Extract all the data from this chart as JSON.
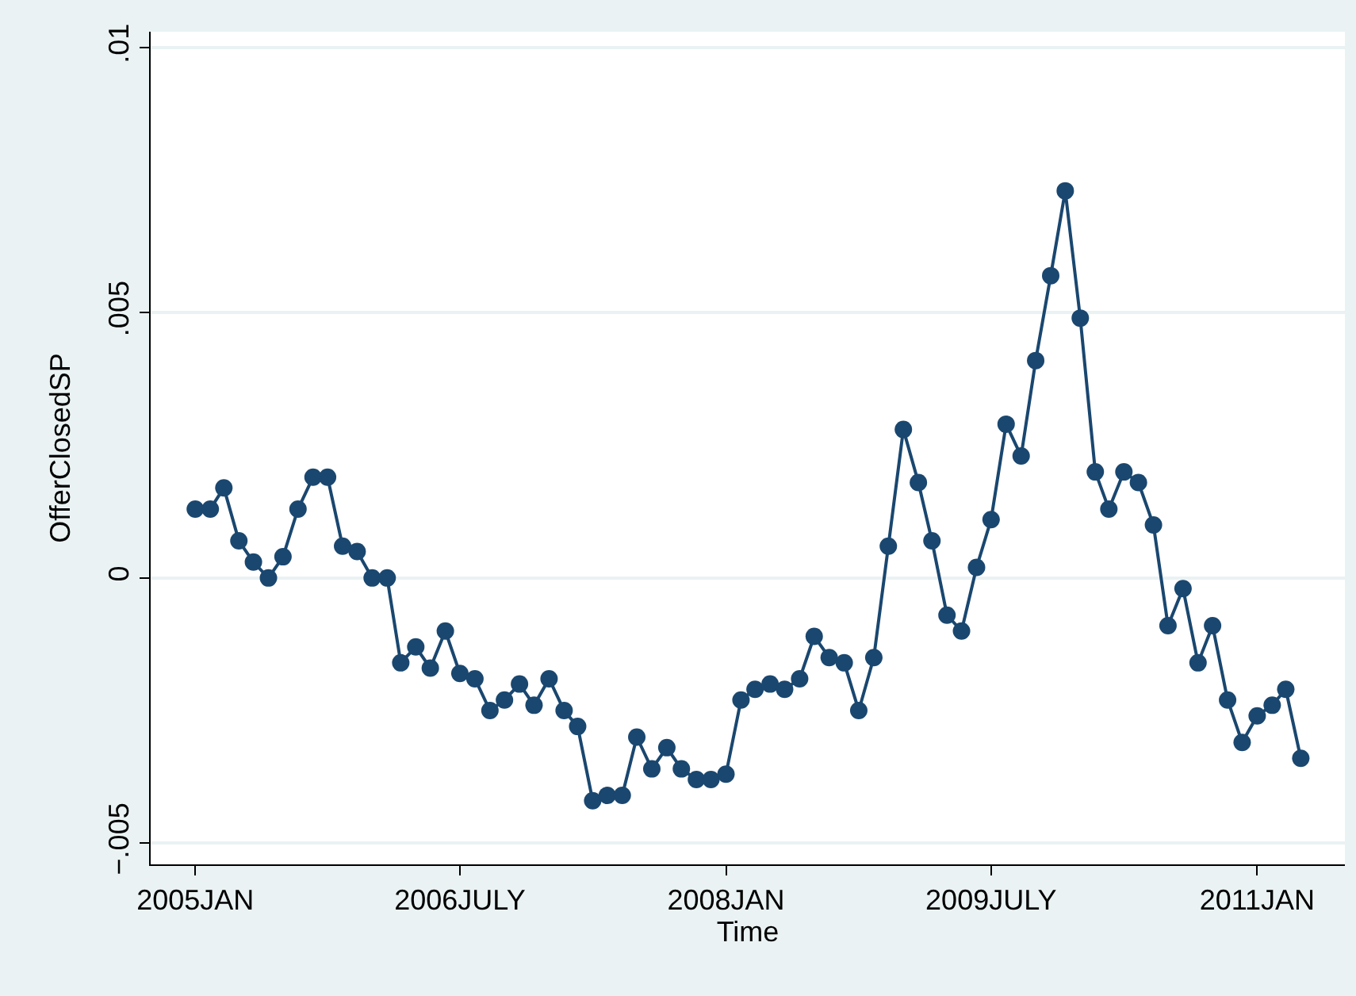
{
  "chart_data": {
    "type": "line",
    "xlabel": "Time",
    "ylabel": "OfferClosedSP",
    "x": [
      "2005-01",
      "2005-02",
      "2005-03",
      "2005-04",
      "2005-05",
      "2005-06",
      "2005-07",
      "2005-08",
      "2005-09",
      "2005-10",
      "2005-11",
      "2005-12",
      "2006-01",
      "2006-02",
      "2006-03",
      "2006-04",
      "2006-05",
      "2006-06",
      "2006-07",
      "2006-08",
      "2006-09",
      "2006-10",
      "2006-11",
      "2006-12",
      "2007-01",
      "2007-02",
      "2007-03",
      "2007-04",
      "2007-05",
      "2007-06",
      "2007-07",
      "2007-08",
      "2007-09",
      "2007-10",
      "2007-11",
      "2007-12",
      "2008-01",
      "2008-02",
      "2008-03",
      "2008-04",
      "2008-05",
      "2008-06",
      "2008-07",
      "2008-08",
      "2008-09",
      "2008-10",
      "2008-11",
      "2008-12",
      "2009-01",
      "2009-02",
      "2009-03",
      "2009-04",
      "2009-05",
      "2009-06",
      "2009-07",
      "2009-08",
      "2009-09",
      "2009-10",
      "2009-11",
      "2009-12",
      "2010-01",
      "2010-02",
      "2010-03",
      "2010-04",
      "2010-05",
      "2010-06",
      "2010-07",
      "2010-08",
      "2010-09",
      "2010-10",
      "2010-11",
      "2010-12",
      "2011-01",
      "2011-02",
      "2011-03",
      "2011-04"
    ],
    "series": [
      {
        "color": "#1a476f",
        "values": [
          0.0013,
          0.0013,
          0.0017,
          0.0007,
          0.0003,
          0.0,
          0.0004,
          0.0013,
          0.0019,
          0.0019,
          0.0006,
          0.0005,
          0.0,
          0.0,
          -0.0016,
          -0.0013,
          -0.0017,
          -0.001,
          -0.0018,
          -0.0019,
          -0.0025,
          -0.0023,
          -0.002,
          -0.0024,
          -0.0019,
          -0.0025,
          -0.0028,
          -0.0042,
          -0.0041,
          -0.0041,
          -0.003,
          -0.0036,
          -0.0032,
          -0.0036,
          -0.0038,
          -0.0038,
          -0.0037,
          -0.0023,
          -0.0021,
          -0.002,
          -0.0021,
          -0.0019,
          -0.0011,
          -0.0015,
          -0.0016,
          -0.0025,
          -0.0015,
          0.0006,
          0.0028,
          0.0018,
          0.0007,
          -0.0007,
          -0.001,
          0.0002,
          0.0011,
          0.0029,
          0.0023,
          0.0041,
          0.0057,
          0.0073,
          0.0049,
          0.002,
          0.0013,
          0.002,
          0.0018,
          0.001,
          -0.0009,
          -0.0002,
          -0.0016,
          -0.0009,
          -0.0023,
          -0.0031,
          -0.0026,
          -0.0024,
          -0.0021,
          -0.0034
        ]
      }
    ],
    "xlim": [
      "2004-10",
      "2011-07"
    ],
    "xticks": [
      {
        "value": "2005-01",
        "label": "2005JAN"
      },
      {
        "value": "2006-07",
        "label": "2006JULY"
      },
      {
        "value": "2008-01",
        "label": "2008JAN"
      },
      {
        "value": "2009-07",
        "label": "2009JULY"
      },
      {
        "value": "2011-01",
        "label": "2011JAN"
      }
    ],
    "ylim": [
      -0.0054,
      0.0103
    ],
    "yticks": [
      {
        "value": -0.005,
        "label": "−.005"
      },
      {
        "value": 0,
        "label": "0"
      },
      {
        "value": 0.005,
        "label": ".005"
      },
      {
        "value": 0.01,
        "label": ".01"
      }
    ],
    "grid": "y",
    "marker": "circle",
    "line_style": "solid"
  }
}
